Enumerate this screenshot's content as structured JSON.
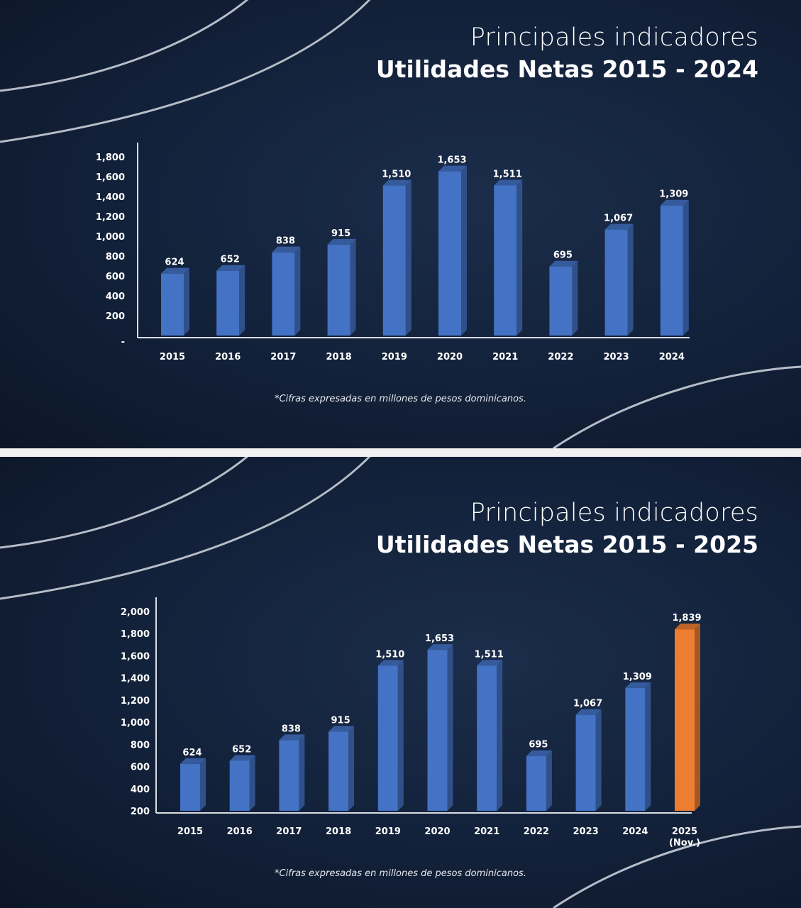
{
  "colors": {
    "bar": "#4472c4",
    "highlight": "#ed7d31",
    "background": "#13223b",
    "text": "#ffffff"
  },
  "chart_data": [
    {
      "type": "bar",
      "supertitle": "Principales indicadores",
      "title": "Utilidades Netas 2015 - 2024",
      "note": "*Cifras expresadas en millones de pesos dominicanos.",
      "categories": [
        "2015",
        "2016",
        "2017",
        "2018",
        "2019",
        "2020",
        "2021",
        "2022",
        "2023",
        "2024"
      ],
      "values": [
        624,
        652,
        838,
        915,
        1510,
        1653,
        1511,
        695,
        1067,
        1309
      ],
      "data_labels": [
        "624",
        "652",
        "838",
        "915",
        "1,510",
        "1,653",
        "1,511",
        "695",
        "1,067",
        "1,309"
      ],
      "ylim": [
        0,
        1800
      ],
      "yticks": [
        0,
        200,
        400,
        600,
        800,
        1000,
        1200,
        1400,
        1600,
        1800
      ],
      "ytick_labels": [
        "-",
        "200",
        "400",
        "600",
        "800",
        "1,000",
        "1,200",
        "1,400",
        "1,600",
        "1,800"
      ],
      "grid": false,
      "style": "3d-column"
    },
    {
      "type": "bar",
      "supertitle": "Principales indicadores",
      "title": "Utilidades Netas 2015 - 2025",
      "note": "*Cifras expresadas en millones de pesos dominicanos.",
      "categories": [
        "2015",
        "2016",
        "2017",
        "2018",
        "2019",
        "2020",
        "2021",
        "2022",
        "2023",
        "2024",
        "2025"
      ],
      "category_sublabels": [
        "",
        "",
        "",
        "",
        "",
        "",
        "",
        "",
        "",
        "",
        "(Nov.)"
      ],
      "values": [
        624,
        652,
        838,
        915,
        1510,
        1653,
        1511,
        695,
        1067,
        1309,
        1839
      ],
      "data_labels": [
        "624",
        "652",
        "838",
        "915",
        "1,510",
        "1,653",
        "1,511",
        "695",
        "1,067",
        "1,309",
        "1,839"
      ],
      "highlight_index": 10,
      "ylim": [
        200,
        2000
      ],
      "yticks": [
        200,
        400,
        600,
        800,
        1000,
        1200,
        1400,
        1600,
        1800,
        2000
      ],
      "ytick_labels": [
        "200",
        "400",
        "600",
        "800",
        "1,000",
        "1,200",
        "1,400",
        "1,600",
        "1,800",
        "2,000"
      ],
      "grid": false,
      "style": "3d-column"
    }
  ]
}
